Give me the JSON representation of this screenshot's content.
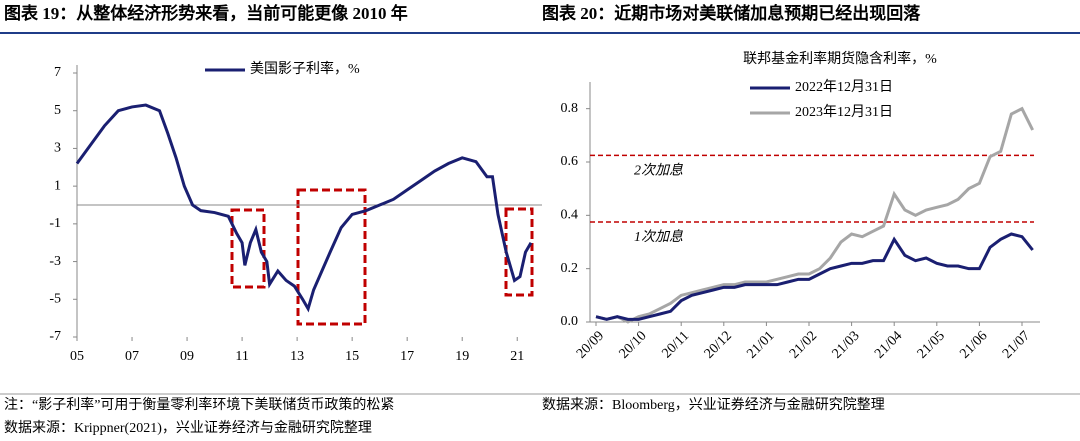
{
  "header": {
    "left_title": "图表 19：从整体经济形势来看，当前可能更像 2010 年",
    "right_title": "图表 20：近期市场对美联储加息预期已经出现回落"
  },
  "chart_data": [
    {
      "type": "line",
      "x": [
        2005.0,
        2005.5,
        2006.0,
        2006.5,
        2007.0,
        2007.5,
        2008.0,
        2008.3,
        2008.6,
        2008.9,
        2009.2,
        2009.5,
        2010.0,
        2010.5,
        2010.8,
        2011.0,
        2011.1,
        2011.3,
        2011.5,
        2011.7,
        2011.9,
        2012.0,
        2012.3,
        2012.6,
        2012.9,
        2013.2,
        2013.4,
        2013.6,
        2013.9,
        2014.2,
        2014.6,
        2015.0,
        2015.5,
        2016.0,
        2016.5,
        2017.0,
        2017.5,
        2018.0,
        2018.5,
        2019.0,
        2019.5,
        2019.9,
        2020.1,
        2020.3,
        2020.6,
        2020.9,
        2021.1,
        2021.3,
        2021.5
      ],
      "series": [
        {
          "name": "美国影子利率，%",
          "color": "#1a1f71",
          "values": [
            2.2,
            3.2,
            4.2,
            5.0,
            5.2,
            5.3,
            5.0,
            3.8,
            2.5,
            1.0,
            0.0,
            -0.3,
            -0.4,
            -0.6,
            -1.5,
            -2.0,
            -3.2,
            -2.0,
            -1.3,
            -2.5,
            -3.0,
            -4.2,
            -3.5,
            -4.0,
            -4.3,
            -5.0,
            -5.5,
            -4.5,
            -3.5,
            -2.5,
            -1.2,
            -0.5,
            -0.3,
            0.0,
            0.3,
            0.8,
            1.3,
            1.8,
            2.2,
            2.5,
            2.3,
            1.5,
            1.5,
            -0.5,
            -2.5,
            -4.0,
            -3.8,
            -2.5,
            -2.0
          ]
        }
      ],
      "xlim": [
        2005,
        2021.9
      ],
      "xticks": [
        {
          "value": 2005,
          "label": "05"
        },
        {
          "value": 2007,
          "label": "07"
        },
        {
          "value": 2009,
          "label": "09"
        },
        {
          "value": 2011,
          "label": "11"
        },
        {
          "value": 2013,
          "label": "13"
        },
        {
          "value": 2015,
          "label": "15"
        },
        {
          "value": 2017,
          "label": "17"
        },
        {
          "value": 2019,
          "label": "19"
        },
        {
          "value": 2021,
          "label": "21"
        }
      ],
      "ylim": [
        -7,
        7
      ],
      "yticks": [
        -7,
        -5,
        -3,
        -1,
        1,
        3,
        5,
        7
      ]
    },
    {
      "type": "line",
      "title": "联邦基金利率期货隐含利率，%",
      "categories": [
        "20/09",
        null,
        null,
        null,
        "20/10",
        null,
        null,
        null,
        "20/11",
        null,
        null,
        null,
        "20/12",
        null,
        null,
        null,
        "21/01",
        null,
        null,
        null,
        "21/02",
        null,
        null,
        null,
        "21/03",
        null,
        null,
        null,
        "21/04",
        null,
        null,
        null,
        "21/05",
        null,
        null,
        null,
        "21/06",
        null,
        null,
        null,
        "21/07",
        null
      ],
      "series": [
        {
          "name": "2022年12月31日",
          "color": "#1a1f71",
          "values": [
            0.02,
            0.01,
            0.02,
            0.01,
            0.01,
            0.02,
            0.03,
            0.04,
            0.08,
            0.1,
            0.11,
            0.12,
            0.13,
            0.13,
            0.14,
            0.14,
            0.14,
            0.14,
            0.15,
            0.16,
            0.16,
            0.18,
            0.2,
            0.21,
            0.22,
            0.22,
            0.23,
            0.23,
            0.31,
            0.25,
            0.23,
            0.24,
            0.22,
            0.21,
            0.21,
            0.2,
            0.2,
            0.28,
            0.31,
            0.33,
            0.32,
            0.27
          ]
        },
        {
          "name": "2023年12月31日",
          "color": "#a6a6a6",
          "values": [
            0.02,
            0.01,
            0.02,
            0.0,
            0.02,
            0.03,
            0.05,
            0.07,
            0.1,
            0.11,
            0.12,
            0.13,
            0.14,
            0.14,
            0.15,
            0.15,
            0.15,
            0.16,
            0.17,
            0.18,
            0.18,
            0.2,
            0.24,
            0.3,
            0.33,
            0.32,
            0.34,
            0.36,
            0.48,
            0.42,
            0.4,
            0.42,
            0.43,
            0.44,
            0.46,
            0.5,
            0.52,
            0.62,
            0.64,
            0.78,
            0.8,
            0.72
          ]
        }
      ],
      "reference_lines": [
        {
          "value": 0.625,
          "label": "2次加息",
          "color": "#c00000"
        },
        {
          "value": 0.375,
          "label": "1次加息",
          "color": "#c00000"
        }
      ],
      "ylim": [
        0,
        0.9
      ],
      "yticks": [
        {
          "value": 0,
          "label": "0.0"
        },
        0.2,
        0.4,
        0.6,
        0.8
      ]
    }
  ],
  "footer": {
    "left_note": "注：“影子利率”可用于衡量零利率环境下美联储货币政策的松紧",
    "left_source": "数据来源：Krippner(2021)，兴业证券经济与金融研究院整理",
    "right_source": "数据来源：Bloomberg，兴业证券经济与金融研究院整理"
  }
}
